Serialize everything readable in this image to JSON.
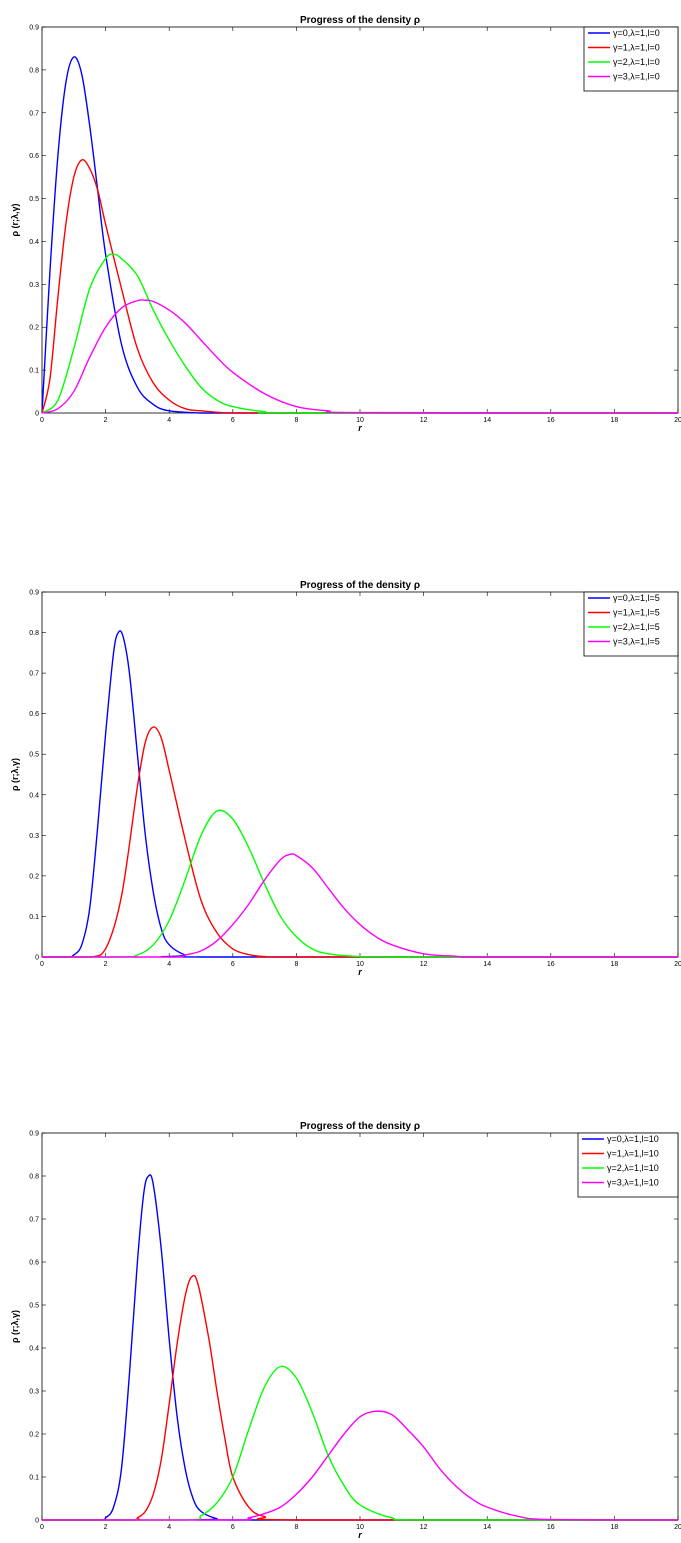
{
  "colors": {
    "axis": "#000000",
    "background": "#ffffff"
  },
  "chart_data": [
    {
      "type": "line",
      "title": "Progress of  the density ρ",
      "xlabel": "r",
      "ylabel": "ρ (r;λ,γ)",
      "xlim": [
        0,
        20
      ],
      "ylim": [
        0,
        0.9
      ],
      "xticks": [
        "0",
        "2",
        "4",
        "6",
        "8",
        "10",
        "12",
        "14",
        "16",
        "18",
        "20"
      ],
      "yticks": [
        "0",
        "0.1",
        "0.2",
        "0.3",
        "0.4",
        "0.5",
        "0.6",
        "0.7",
        "0.8",
        "0.9"
      ],
      "legend_position": "top-right",
      "grid": false,
      "series": [
        {
          "name": "γ=0,λ=1,l=0",
          "color": "#0000ff",
          "x": [
            0,
            0.25,
            0.5,
            0.75,
            1,
            1.25,
            1.5,
            1.75,
            2,
            2.5,
            3,
            3.5,
            4,
            5,
            6,
            8,
            20
          ],
          "y": [
            0,
            0.33,
            0.6,
            0.77,
            0.83,
            0.79,
            0.67,
            0.52,
            0.37,
            0.16,
            0.06,
            0.02,
            0.005,
            0,
            0,
            0,
            0
          ]
        },
        {
          "name": "γ=1,λ=1,l=0",
          "color": "#ff0000",
          "x": [
            0,
            0.25,
            0.5,
            0.75,
            1,
            1.25,
            1.5,
            1.75,
            2,
            2.5,
            3,
            3.5,
            4,
            4.5,
            5,
            6,
            8,
            20
          ],
          "y": [
            0,
            0.08,
            0.27,
            0.44,
            0.55,
            0.59,
            0.57,
            0.52,
            0.44,
            0.29,
            0.15,
            0.07,
            0.03,
            0.01,
            0.005,
            0,
            0,
            0
          ]
        },
        {
          "name": "γ=2,λ=1,l=0",
          "color": "#00ff00",
          "x": [
            0,
            0.5,
            1,
            1.5,
            2,
            2.25,
            2.5,
            3,
            3.5,
            4,
            4.5,
            5,
            5.5,
            6,
            7,
            8,
            20
          ],
          "y": [
            0,
            0.03,
            0.15,
            0.29,
            0.36,
            0.37,
            0.36,
            0.32,
            0.24,
            0.17,
            0.11,
            0.06,
            0.03,
            0.015,
            0.003,
            0,
            0
          ]
        },
        {
          "name": "γ=3,λ=1,l=0",
          "color": "#ff00ff",
          "x": [
            0,
            0.5,
            1,
            1.5,
            2,
            2.5,
            3,
            3.25,
            3.5,
            4,
            4.5,
            5,
            5.5,
            6,
            7,
            8,
            9,
            10,
            20
          ],
          "y": [
            0,
            0.01,
            0.05,
            0.13,
            0.2,
            0.245,
            0.262,
            0.263,
            0.26,
            0.24,
            0.21,
            0.17,
            0.13,
            0.095,
            0.045,
            0.015,
            0.005,
            0.001,
            0
          ]
        }
      ]
    },
    {
      "type": "line",
      "title": "Progress of  the density ρ",
      "xlabel": "r",
      "ylabel": "ρ (r;λ,γ)",
      "xlim": [
        0,
        20
      ],
      "ylim": [
        0,
        0.9
      ],
      "xticks": [
        "0",
        "2",
        "4",
        "6",
        "8",
        "10",
        "12",
        "14",
        "16",
        "18",
        "20"
      ],
      "yticks": [
        "0",
        "0.1",
        "0.2",
        "0.3",
        "0.4",
        "0.5",
        "0.6",
        "0.7",
        "0.8",
        "0.9"
      ],
      "legend_position": "top-right",
      "grid": false,
      "series": [
        {
          "name": "γ=0,λ=1,l=5",
          "color": "#0000ff",
          "x": [
            0,
            0.8,
            1,
            1.25,
            1.5,
            1.75,
            2,
            2.25,
            2.4,
            2.55,
            2.75,
            3,
            3.25,
            3.5,
            3.75,
            4,
            4.5,
            5,
            20
          ],
          "y": [
            0,
            0,
            0.005,
            0.03,
            0.12,
            0.32,
            0.55,
            0.75,
            0.8,
            0.79,
            0.7,
            0.5,
            0.3,
            0.16,
            0.07,
            0.03,
            0.005,
            0,
            0
          ]
        },
        {
          "name": "γ=1,λ=1,l=5",
          "color": "#ff0000",
          "x": [
            0,
            1.5,
            2,
            2.5,
            3,
            3.25,
            3.5,
            3.75,
            4,
            4.5,
            5,
            5.5,
            6,
            6.5,
            7,
            8,
            20
          ],
          "y": [
            0,
            0,
            0.02,
            0.15,
            0.42,
            0.53,
            0.567,
            0.54,
            0.46,
            0.29,
            0.14,
            0.06,
            0.02,
            0.006,
            0.001,
            0,
            0
          ]
        },
        {
          "name": "γ=2,λ=1,l=5",
          "color": "#00ff00",
          "x": [
            0,
            2.5,
            3,
            3.5,
            4,
            4.5,
            5,
            5.5,
            6,
            6.5,
            7,
            7.5,
            8,
            8.5,
            9,
            10,
            11,
            20
          ],
          "y": [
            0,
            0,
            0.005,
            0.03,
            0.09,
            0.19,
            0.3,
            0.36,
            0.34,
            0.27,
            0.18,
            0.1,
            0.05,
            0.02,
            0.008,
            0.001,
            0,
            0
          ]
        },
        {
          "name": "γ=3,λ=1,l=5",
          "color": "#ff00ff",
          "x": [
            0,
            4,
            4.5,
            5,
            5.5,
            6,
            6.5,
            7,
            7.5,
            7.8,
            8,
            8.5,
            9,
            9.5,
            10,
            10.5,
            11,
            12,
            13,
            14,
            20
          ],
          "y": [
            0,
            0,
            0.005,
            0.015,
            0.04,
            0.08,
            0.13,
            0.19,
            0.24,
            0.253,
            0.25,
            0.22,
            0.17,
            0.12,
            0.08,
            0.05,
            0.03,
            0.008,
            0.002,
            0,
            0
          ]
        }
      ]
    },
    {
      "type": "line",
      "title": "Progress of  the density ρ",
      "xlabel": "r",
      "ylabel": "ρ (r;λ,γ)",
      "xlim": [
        0,
        20
      ],
      "ylim": [
        0,
        0.9
      ],
      "xticks": [
        "0",
        "2",
        "4",
        "6",
        "8",
        "10",
        "12",
        "14",
        "16",
        "18",
        "20"
      ],
      "yticks": [
        "0",
        "0.1",
        "0.2",
        "0.3",
        "0.4",
        "0.5",
        "0.6",
        "0.7",
        "0.8",
        "0.9"
      ],
      "legend_position": "top-right",
      "grid": false,
      "series": [
        {
          "name": "γ=0,λ=1,l=10",
          "color": "#0000ff",
          "x": [
            0,
            1.8,
            2,
            2.25,
            2.5,
            2.75,
            3,
            3.2,
            3.35,
            3.5,
            3.75,
            4,
            4.25,
            4.5,
            4.75,
            5,
            5.5,
            6,
            20
          ],
          "y": [
            0,
            0,
            0.005,
            0.03,
            0.12,
            0.34,
            0.6,
            0.76,
            0.8,
            0.78,
            0.63,
            0.42,
            0.24,
            0.12,
            0.05,
            0.02,
            0.003,
            0,
            0
          ]
        },
        {
          "name": "γ=1,λ=1,l=10",
          "color": "#ff0000",
          "x": [
            0,
            2.8,
            3,
            3.25,
            3.5,
            3.75,
            4,
            4.25,
            4.5,
            4.7,
            4.9,
            5.25,
            5.5,
            5.75,
            6,
            6.5,
            7,
            8,
            20
          ],
          "y": [
            0,
            0,
            0.005,
            0.02,
            0.06,
            0.14,
            0.27,
            0.41,
            0.52,
            0.565,
            0.55,
            0.42,
            0.3,
            0.19,
            0.1,
            0.03,
            0.008,
            0,
            0
          ]
        },
        {
          "name": "γ=2,λ=1,l=10",
          "color": "#00ff00",
          "x": [
            0,
            4.5,
            5,
            5.5,
            6,
            6.5,
            7,
            7.5,
            8,
            8.5,
            9,
            9.5,
            10,
            11,
            12,
            20
          ],
          "y": [
            0,
            0,
            0.01,
            0.04,
            0.1,
            0.21,
            0.31,
            0.357,
            0.33,
            0.25,
            0.15,
            0.08,
            0.035,
            0.005,
            0,
            0
          ]
        },
        {
          "name": "γ=3,λ=1,l=10",
          "color": "#ff00ff",
          "x": [
            0,
            6,
            6.5,
            7,
            7.5,
            8,
            8.5,
            9,
            9.5,
            10,
            10.5,
            11,
            11.5,
            12,
            12.5,
            13,
            13.5,
            14,
            15,
            16,
            20
          ],
          "y": [
            0,
            0,
            0.005,
            0.015,
            0.03,
            0.06,
            0.1,
            0.15,
            0.2,
            0.24,
            0.253,
            0.245,
            0.21,
            0.17,
            0.12,
            0.08,
            0.05,
            0.03,
            0.008,
            0.001,
            0
          ]
        }
      ]
    }
  ]
}
